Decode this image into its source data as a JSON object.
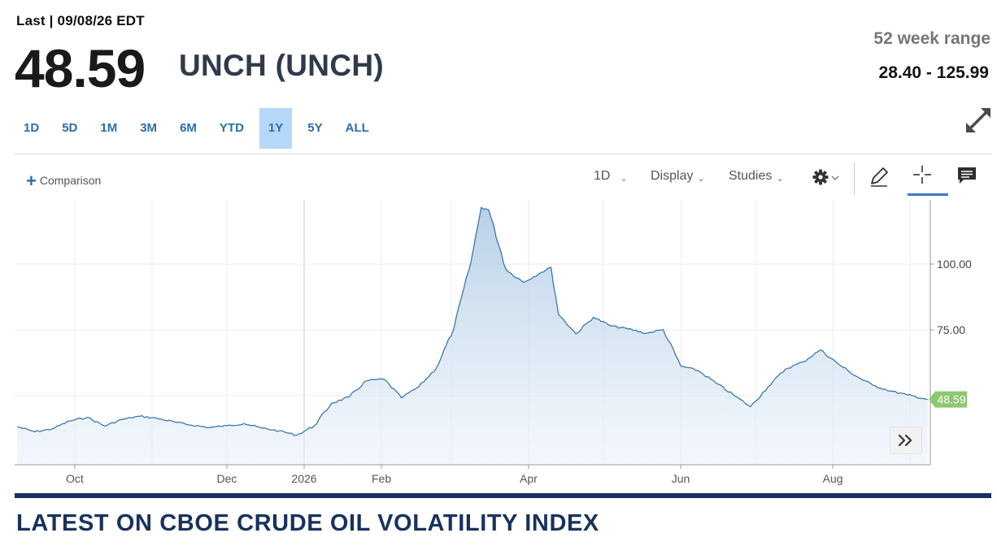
{
  "header": {
    "last_label": "Last | 09/08/26 EDT",
    "price": "48.59",
    "change": "UNCH (UNCH)",
    "range_label": "52 week range",
    "range_value": "28.40 - 125.99"
  },
  "range_tabs": [
    {
      "label": "1D",
      "active": false
    },
    {
      "label": "5D",
      "active": false
    },
    {
      "label": "1M",
      "active": false
    },
    {
      "label": "3M",
      "active": false
    },
    {
      "label": "6M",
      "active": false
    },
    {
      "label": "YTD",
      "active": false
    },
    {
      "label": "1Y",
      "active": true
    },
    {
      "label": "5Y",
      "active": false
    },
    {
      "label": "ALL",
      "active": false
    }
  ],
  "toolbar": {
    "comparison_label": "Comparison",
    "interval_label": "1D",
    "display_label": "Display",
    "studies_label": "Studies"
  },
  "icons": {
    "expand": "expand-icon",
    "plus": "plus-icon",
    "settings": "gear-icon",
    "draw": "pencil-icon",
    "crosshair": "crosshair-icon",
    "comment": "comment-icon",
    "next": "double-chevron-right-icon"
  },
  "colors": {
    "line": "#3b78b0",
    "fill_top": "#b3cde6",
    "active_tab": "#b5d8f8",
    "last_price_tag": "#8cc86f",
    "headline": "#17325e"
  },
  "chart_data": {
    "type": "area",
    "ylim": [
      28,
      130
    ],
    "grid": true,
    "y_ticks": [
      "75.00",
      "100.00"
    ],
    "x_ticks": [
      "Oct",
      "Dec",
      "2026",
      "Feb",
      "Apr",
      "Jun",
      "Aug"
    ],
    "last_price_label": "48.59",
    "series": [
      {
        "points": [
          [
            "2025-09-08",
            38.2
          ],
          [
            "2025-09-15",
            36.3
          ],
          [
            "2025-09-22",
            37.4
          ],
          [
            "2025-09-29",
            40.4
          ],
          [
            "2025-10-06",
            41.8
          ],
          [
            "2025-10-13",
            38.5
          ],
          [
            "2025-10-20",
            41.0
          ],
          [
            "2025-10-27",
            42.2
          ],
          [
            "2025-11-03",
            41.4
          ],
          [
            "2025-11-10",
            40.0
          ],
          [
            "2025-11-17",
            38.8
          ],
          [
            "2025-11-24",
            37.9
          ],
          [
            "2025-12-01",
            38.6
          ],
          [
            "2025-12-08",
            39.4
          ],
          [
            "2025-12-15",
            37.7
          ],
          [
            "2025-12-22",
            36.6
          ],
          [
            "2025-12-29",
            35.0
          ],
          [
            "2026-01-05",
            38.5
          ],
          [
            "2026-01-12",
            47.1
          ],
          [
            "2026-01-19",
            49.5
          ],
          [
            "2026-01-26",
            55.7
          ],
          [
            "2026-02-02",
            56.3
          ],
          [
            "2026-02-09",
            49.2
          ],
          [
            "2026-02-16",
            53.4
          ],
          [
            "2026-02-23",
            60.5
          ],
          [
            "2026-03-02",
            75.4
          ],
          [
            "2026-03-09",
            101.3
          ],
          [
            "2026-03-13",
            121.5
          ],
          [
            "2026-03-16",
            120.6
          ],
          [
            "2026-03-23",
            97.8
          ],
          [
            "2026-03-30",
            93.1
          ],
          [
            "2026-04-06",
            96.8
          ],
          [
            "2026-04-10",
            98.7
          ],
          [
            "2026-04-13",
            81.0
          ],
          [
            "2026-04-20",
            73.5
          ],
          [
            "2026-04-27",
            79.8
          ],
          [
            "2026-05-04",
            76.5
          ],
          [
            "2026-05-11",
            75.4
          ],
          [
            "2026-05-18",
            73.7
          ],
          [
            "2026-05-25",
            75.1
          ],
          [
            "2026-06-01",
            61.3
          ],
          [
            "2026-06-08",
            59.5
          ],
          [
            "2026-06-15",
            54.9
          ],
          [
            "2026-06-22",
            50.4
          ],
          [
            "2026-06-29",
            45.8
          ],
          [
            "2026-07-06",
            53.4
          ],
          [
            "2026-07-13",
            60.1
          ],
          [
            "2026-07-20",
            62.8
          ],
          [
            "2026-07-27",
            67.4
          ],
          [
            "2026-08-03",
            62.2
          ],
          [
            "2026-08-10",
            57.6
          ],
          [
            "2026-08-17",
            54.0
          ],
          [
            "2026-08-24",
            51.8
          ],
          [
            "2026-08-31",
            50.3
          ],
          [
            "2026-09-08",
            48.59
          ]
        ]
      }
    ]
  },
  "headline": "LATEST ON CBOE CRUDE OIL VOLATILITY INDEX"
}
